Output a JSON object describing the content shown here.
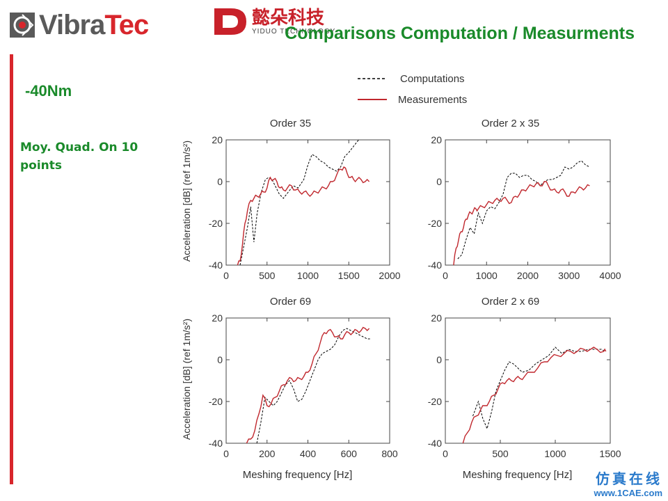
{
  "header": {
    "logo_left": {
      "part1": "Vibra",
      "part2": "Tec"
    },
    "logo_right": {
      "cn": "懿朵科技",
      "en": "YIDUO TECHNOLOGY"
    },
    "title": "Comparisons   Computation / Measurments"
  },
  "sidebar": {
    "torque": "-40Nm",
    "note": "Moy. Quad. On 10 points"
  },
  "legend": {
    "computations": "Computations",
    "measurements": "Measurements"
  },
  "watermark": {
    "cn": "仿真在线",
    "url": "www.1CAE.com"
  },
  "colors": {
    "measurement": "#c0272d",
    "computation": "#000000",
    "title_green": "#1a8a2a",
    "accent_red": "#d8262c"
  },
  "chart_data": [
    {
      "type": "line",
      "title": "Order 35",
      "ylabel": "Acceleration [dB] (ref 1m/s²)",
      "xlabel": "",
      "xlim": [
        0,
        2000
      ],
      "ylim": [
        -40,
        20
      ],
      "xticks": [
        0,
        500,
        1000,
        1500,
        2000
      ],
      "yticks": [
        20,
        0,
        -20,
        -40
      ],
      "series": [
        {
          "name": "Computations",
          "style": "dashed",
          "x": [
            170,
            220,
            260,
            300,
            340,
            380,
            430,
            480,
            520,
            560,
            600,
            650,
            700,
            760,
            820,
            880,
            950,
            1000,
            1050,
            1100,
            1150,
            1200,
            1250,
            1300,
            1350,
            1400,
            1450,
            1500,
            1560,
            1620
          ],
          "y": [
            -40,
            -30,
            -22,
            -12,
            -29,
            -15,
            -5,
            1,
            2,
            1,
            -2,
            -6,
            -8,
            -5,
            -2,
            -3,
            1,
            8,
            13,
            12,
            10,
            9,
            7,
            6,
            5,
            7,
            12,
            14,
            17,
            20
          ]
        },
        {
          "name": "Measurements",
          "style": "solid",
          "x": [
            140,
            170,
            200,
            230,
            260,
            300,
            340,
            380,
            420,
            460,
            500,
            540,
            580,
            620,
            660,
            700,
            750,
            800,
            850,
            900,
            950,
            1000,
            1050,
            1100,
            1150,
            1200,
            1250,
            1300,
            1350,
            1400,
            1440,
            1480,
            1520,
            1560,
            1600,
            1650,
            1700,
            1750
          ],
          "y": [
            -40,
            -38,
            -30,
            -20,
            -14,
            -9,
            -8,
            -7,
            -6,
            -5,
            -3,
            2,
            1,
            0,
            -3,
            -4,
            -3,
            -2,
            -4,
            -5,
            -5,
            -6,
            -6,
            -5,
            -4,
            -3,
            -2,
            0,
            3,
            6,
            7,
            4,
            2,
            1,
            1,
            1,
            0,
            0
          ]
        }
      ]
    },
    {
      "type": "line",
      "title": "Order 2 x 35",
      "ylabel": "",
      "xlabel": "",
      "xlim": [
        0,
        4000
      ],
      "ylim": [
        -40,
        20
      ],
      "xticks": [
        0,
        1000,
        2000,
        3000,
        4000
      ],
      "yticks": [
        20,
        0,
        -20,
        -40
      ],
      "series": [
        {
          "name": "Computations",
          "style": "dashed",
          "x": [
            300,
            400,
            500,
            600,
            700,
            800,
            900,
            1000,
            1100,
            1200,
            1300,
            1400,
            1500,
            1600,
            1700,
            1800,
            1900,
            2000,
            2100,
            2200,
            2300,
            2400,
            2500,
            2600,
            2700,
            2800,
            2900,
            3000,
            3100,
            3200,
            3300,
            3400,
            3500
          ],
          "y": [
            -37,
            -35,
            -28,
            -22,
            -25,
            -15,
            -20,
            -14,
            -12,
            -13,
            -10,
            -6,
            2,
            4,
            4,
            2,
            3,
            3,
            1,
            0,
            -2,
            0,
            1,
            1,
            2,
            3,
            7,
            6,
            7,
            9,
            10,
            8,
            7
          ]
        },
        {
          "name": "Measurements",
          "style": "solid",
          "x": [
            200,
            260,
            320,
            380,
            440,
            500,
            560,
            620,
            680,
            740,
            800,
            900,
            1000,
            1100,
            1200,
            1300,
            1400,
            1500,
            1600,
            1700,
            1800,
            1900,
            2000,
            2100,
            2200,
            2300,
            2400,
            2500,
            2600,
            2700,
            2800,
            2900,
            3000,
            3100,
            3200,
            3300,
            3400,
            3500
          ],
          "y": [
            -40,
            -32,
            -28,
            -24,
            -22,
            -18,
            -16,
            -15,
            -14,
            -13,
            -13,
            -12,
            -11,
            -10,
            -9,
            -9,
            -8,
            -9,
            -10,
            -7,
            -6,
            -4,
            -3,
            -2,
            -1,
            -2,
            0,
            -2,
            -4,
            -5,
            -4,
            -5,
            -7,
            -5,
            -4,
            -3,
            -3,
            -2
          ]
        }
      ]
    },
    {
      "type": "line",
      "title": "Order 69",
      "ylabel": "Acceleration [dB] (ref 1m/s²)",
      "xlabel": "Meshing frequency   [Hz]",
      "xlim": [
        0,
        800
      ],
      "ylim": [
        -40,
        20
      ],
      "xticks": [
        0,
        200,
        400,
        600,
        800
      ],
      "yticks": [
        20,
        0,
        -20,
        -40
      ],
      "series": [
        {
          "name": "Computations",
          "style": "dashed",
          "x": [
            150,
            170,
            190,
            210,
            230,
            250,
            270,
            290,
            310,
            330,
            350,
            370,
            390,
            410,
            430,
            450,
            470,
            490,
            510,
            530,
            550,
            570,
            590,
            610,
            630,
            650,
            670,
            690,
            710
          ],
          "y": [
            -40,
            -30,
            -18,
            -20,
            -22,
            -20,
            -16,
            -12,
            -10,
            -14,
            -20,
            -19,
            -15,
            -10,
            -5,
            0,
            3,
            4,
            5,
            7,
            11,
            14,
            15,
            14,
            13,
            12,
            11,
            10,
            10
          ]
        },
        {
          "name": "Measurements",
          "style": "solid",
          "x": [
            100,
            120,
            140,
            160,
            180,
            200,
            220,
            240,
            260,
            280,
            300,
            320,
            340,
            360,
            380,
            400,
            420,
            440,
            460,
            480,
            500,
            520,
            540,
            560,
            580,
            600,
            620,
            640,
            660,
            680,
            700
          ],
          "y": [
            -40,
            -38,
            -34,
            -26,
            -17,
            -22,
            -21,
            -18,
            -15,
            -12,
            -10,
            -9,
            -10,
            -9,
            -8,
            -6,
            -2,
            3,
            8,
            13,
            14,
            13,
            11,
            10,
            12,
            13,
            13,
            14,
            14,
            15,
            15
          ]
        }
      ]
    },
    {
      "type": "line",
      "title": "Order 2 x 69",
      "ylabel": "",
      "xlabel": "Meshing frequency   [Hz]",
      "xlim": [
        0,
        1500
      ],
      "ylim": [
        -40,
        20
      ],
      "xticks": [
        0,
        500,
        1000,
        1500
      ],
      "yticks": [
        20,
        0,
        -20,
        -40
      ],
      "series": [
        {
          "name": "Computations",
          "style": "dashed",
          "x": [
            250,
            300,
            340,
            380,
            420,
            460,
            500,
            540,
            580,
            620,
            660,
            700,
            760,
            820,
            880,
            940,
            1000,
            1060,
            1120,
            1180,
            1240,
            1300,
            1360,
            1420,
            1450
          ],
          "y": [
            -27,
            -20,
            -28,
            -33,
            -25,
            -15,
            -10,
            -5,
            -1,
            -2,
            -4,
            -6,
            -5,
            -2,
            0,
            2,
            6,
            3,
            5,
            4,
            4,
            5,
            5,
            5,
            4
          ]
        },
        {
          "name": "Measurements",
          "style": "solid",
          "x": [
            160,
            200,
            240,
            280,
            320,
            360,
            400,
            440,
            480,
            520,
            560,
            600,
            640,
            680,
            720,
            780,
            840,
            900,
            960,
            1020,
            1080,
            1140,
            1200,
            1260,
            1320,
            1380,
            1440,
            1460
          ],
          "y": [
            -40,
            -35,
            -30,
            -27,
            -24,
            -22,
            -20,
            -17,
            -14,
            -11,
            -10,
            -10,
            -9,
            -9,
            -8,
            -6,
            -4,
            -1,
            1,
            2,
            3,
            4,
            4,
            5,
            5,
            5,
            4,
            4
          ]
        }
      ]
    }
  ]
}
